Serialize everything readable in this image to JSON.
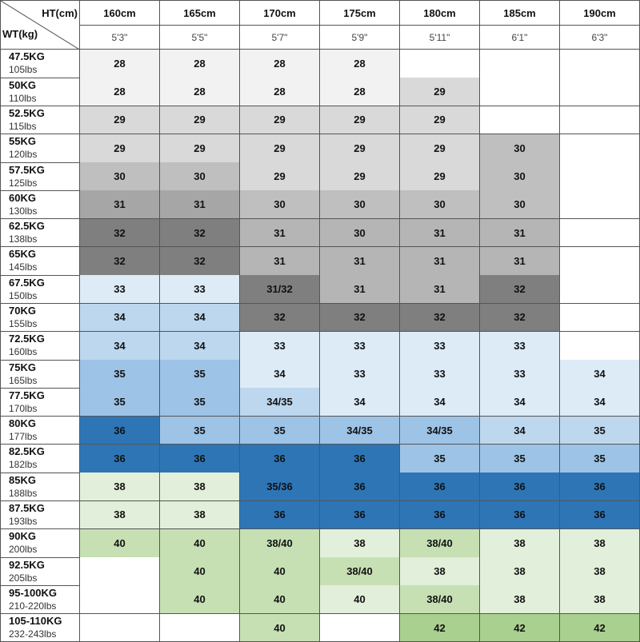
{
  "corner": {
    "height_label": "HT(cm)",
    "weight_label": "WT(kg)"
  },
  "columns": [
    {
      "cm": "160cm",
      "ft": "5'3\""
    },
    {
      "cm": "165cm",
      "ft": "5'5\""
    },
    {
      "cm": "170cm",
      "ft": "5'7\""
    },
    {
      "cm": "175cm",
      "ft": "5'9\""
    },
    {
      "cm": "180cm",
      "ft": "5'11\""
    },
    {
      "cm": "185cm",
      "ft": "6'1\""
    },
    {
      "cm": "190cm",
      "ft": "6'3\""
    }
  ],
  "rows": [
    {
      "kg": "47.5KG",
      "lbs": "105lbs",
      "cells": [
        28,
        28,
        28,
        28,
        null,
        null,
        null
      ],
      "colors": [
        "#f2f2f2",
        "#f2f2f2",
        "#f2f2f2",
        "#f2f2f2",
        null,
        null,
        null
      ]
    },
    {
      "kg": "50KG",
      "lbs": "110lbs",
      "cells": [
        28,
        28,
        28,
        28,
        29,
        null,
        null
      ],
      "colors": [
        "#f2f2f2",
        "#f2f2f2",
        "#f2f2f2",
        "#f2f2f2",
        "#d9d9d9",
        null,
        null
      ]
    },
    {
      "kg": "52.5KG",
      "lbs": "115lbs",
      "cells": [
        29,
        29,
        29,
        29,
        29,
        null,
        null
      ],
      "colors": [
        "#d9d9d9",
        "#d9d9d9",
        "#d9d9d9",
        "#d9d9d9",
        "#d9d9d9",
        null,
        null
      ]
    },
    {
      "kg": "55KG",
      "lbs": "120lbs",
      "cells": [
        29,
        29,
        29,
        29,
        29,
        30,
        null
      ],
      "colors": [
        "#d9d9d9",
        "#d9d9d9",
        "#d9d9d9",
        "#d9d9d9",
        "#d9d9d9",
        "#bfbfbf",
        null
      ]
    },
    {
      "kg": "57.5KG",
      "lbs": "125lbs",
      "cells": [
        30,
        30,
        29,
        29,
        29,
        30,
        null
      ],
      "colors": [
        "#bfbfbf",
        "#bfbfbf",
        "#d9d9d9",
        "#d9d9d9",
        "#d9d9d9",
        "#bfbfbf",
        null
      ]
    },
    {
      "kg": "60KG",
      "lbs": "130lbs",
      "cells": [
        31,
        31,
        30,
        30,
        30,
        30,
        null
      ],
      "colors": [
        "#a6a6a6",
        "#a6a6a6",
        "#bfbfbf",
        "#bfbfbf",
        "#bfbfbf",
        "#bfbfbf",
        null
      ]
    },
    {
      "kg": "62.5KG",
      "lbs": "138lbs",
      "cells": [
        32,
        32,
        31,
        30,
        31,
        31,
        null
      ],
      "colors": [
        "#7f7f7f",
        "#7f7f7f",
        "#b5b5b5",
        "#b5b5b5",
        "#b5b5b5",
        "#b5b5b5",
        null
      ]
    },
    {
      "kg": "65KG",
      "lbs": "145lbs",
      "cells": [
        32,
        32,
        31,
        31,
        31,
        31,
        null
      ],
      "colors": [
        "#7f7f7f",
        "#7f7f7f",
        "#b5b5b5",
        "#b5b5b5",
        "#b5b5b5",
        "#b5b5b5",
        null
      ]
    },
    {
      "kg": "67.5KG",
      "lbs": "150lbs",
      "cells": [
        33,
        33,
        "31/32",
        31,
        31,
        32,
        null
      ],
      "colors": [
        "#ddebf7",
        "#ddebf7",
        "#7f7f7f",
        "#b5b5b5",
        "#b5b5b5",
        "#7f7f7f",
        null
      ]
    },
    {
      "kg": "70KG",
      "lbs": "155lbs",
      "cells": [
        34,
        34,
        32,
        32,
        32,
        32,
        null
      ],
      "colors": [
        "#bdd7ee",
        "#bdd7ee",
        "#7f7f7f",
        "#7f7f7f",
        "#7f7f7f",
        "#7f7f7f",
        null
      ]
    },
    {
      "kg": "72.5KG",
      "lbs": "160lbs",
      "cells": [
        34,
        34,
        33,
        33,
        33,
        33,
        null
      ],
      "colors": [
        "#bdd7ee",
        "#bdd7ee",
        "#ddebf7",
        "#ddebf7",
        "#ddebf7",
        "#ddebf7",
        null
      ]
    },
    {
      "kg": "75KG",
      "lbs": "165lbs",
      "cells": [
        35,
        35,
        34,
        33,
        33,
        33,
        34
      ],
      "colors": [
        "#9dc3e6",
        "#9dc3e6",
        "#ddebf7",
        "#ddebf7",
        "#ddebf7",
        "#ddebf7",
        "#ddebf7"
      ]
    },
    {
      "kg": "77.5KG",
      "lbs": "170lbs",
      "cells": [
        35,
        35,
        "34/35",
        34,
        34,
        34,
        34
      ],
      "colors": [
        "#9dc3e6",
        "#9dc3e6",
        "#bdd7ee",
        "#ddebf7",
        "#ddebf7",
        "#ddebf7",
        "#ddebf7"
      ]
    },
    {
      "kg": "80KG",
      "lbs": "177lbs",
      "cells": [
        36,
        35,
        35,
        "34/35",
        "34/35",
        34,
        35
      ],
      "colors": [
        "#2e75b6",
        "#9dc3e6",
        "#9dc3e6",
        "#9dc3e6",
        "#9dc3e6",
        "#bdd7ee",
        "#bdd7ee"
      ]
    },
    {
      "kg": "82.5KG",
      "lbs": "182lbs",
      "cells": [
        36,
        36,
        36,
        36,
        35,
        35,
        35
      ],
      "colors": [
        "#2e75b6",
        "#2e75b6",
        "#2e75b6",
        "#2e75b6",
        "#9dc3e6",
        "#9dc3e6",
        "#9dc3e6"
      ]
    },
    {
      "kg": "85KG",
      "lbs": "188lbs",
      "cells": [
        38,
        38,
        "35/36",
        36,
        36,
        36,
        36
      ],
      "colors": [
        "#e2efda",
        "#e2efda",
        "#2e75b6",
        "#2e75b6",
        "#2e75b6",
        "#2e75b6",
        "#2e75b6"
      ]
    },
    {
      "kg": "87.5KG",
      "lbs": "193lbs",
      "cells": [
        38,
        38,
        36,
        36,
        36,
        36,
        36
      ],
      "colors": [
        "#e2efda",
        "#e2efda",
        "#2e75b6",
        "#2e75b6",
        "#2e75b6",
        "#2e75b6",
        "#2e75b6"
      ]
    },
    {
      "kg": "90KG",
      "lbs": "200lbs",
      "cells": [
        40,
        40,
        "38/40",
        38,
        "38/40",
        38,
        38
      ],
      "colors": [
        "#c6e0b4",
        "#c6e0b4",
        "#c6e0b4",
        "#e2efda",
        "#c6e0b4",
        "#e2efda",
        "#e2efda"
      ]
    },
    {
      "kg": "92.5KG",
      "lbs": "205lbs",
      "cells": [
        null,
        40,
        40,
        "38/40",
        38,
        38,
        38
      ],
      "colors": [
        null,
        "#c6e0b4",
        "#c6e0b4",
        "#c6e0b4",
        "#e2efda",
        "#e2efda",
        "#e2efda"
      ]
    },
    {
      "kg": "95-100KG",
      "lbs": "210-220lbs",
      "cells": [
        null,
        40,
        40,
        40,
        "38/40",
        38,
        38
      ],
      "colors": [
        null,
        "#c6e0b4",
        "#c6e0b4",
        "#e2efda",
        "#c6e0b4",
        "#e2efda",
        "#e2efda"
      ]
    },
    {
      "kg": "105-110KG",
      "lbs": "232-243lbs",
      "cells": [
        null,
        null,
        40,
        null,
        42,
        42,
        42
      ],
      "colors": [
        null,
        null,
        "#c6e0b4",
        null,
        "#a9d08e",
        "#a9d08e",
        "#a9d08e"
      ]
    }
  ]
}
